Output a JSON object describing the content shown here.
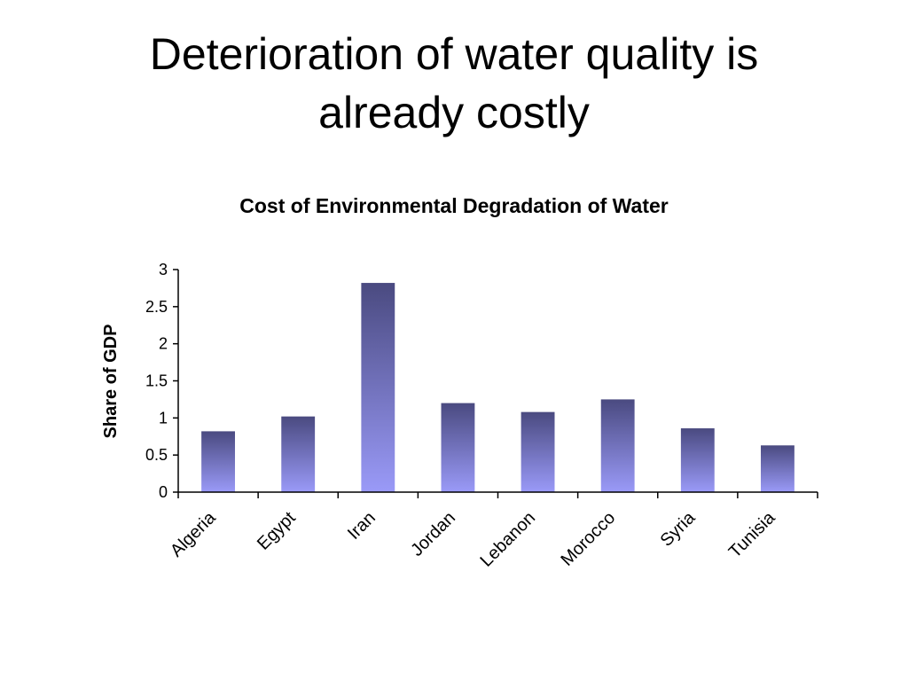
{
  "slide": {
    "title_line1": "Deterioration of water quality is",
    "title_line2": "already costly"
  },
  "chart_data": {
    "type": "bar",
    "title": "Cost of Environmental Degradation of Water",
    "xlabel": "",
    "ylabel": "Share of GDP",
    "categories": [
      "Algeria",
      "Egypt",
      "Iran",
      "Jordan",
      "Lebanon",
      "Morocco",
      "Syria",
      "Tunisia"
    ],
    "values": [
      0.82,
      1.02,
      2.82,
      1.2,
      1.08,
      1.25,
      0.86,
      0.63
    ],
    "ylim": [
      0,
      3
    ],
    "yticks": [
      "0",
      "0.5",
      "1",
      "1.5",
      "2",
      "2.5",
      "3"
    ],
    "grid": false,
    "legend": "none",
    "colors": {
      "bar_top": "#4a4a80",
      "bar_bottom": "#9a9af8",
      "axis": "#000000"
    }
  }
}
